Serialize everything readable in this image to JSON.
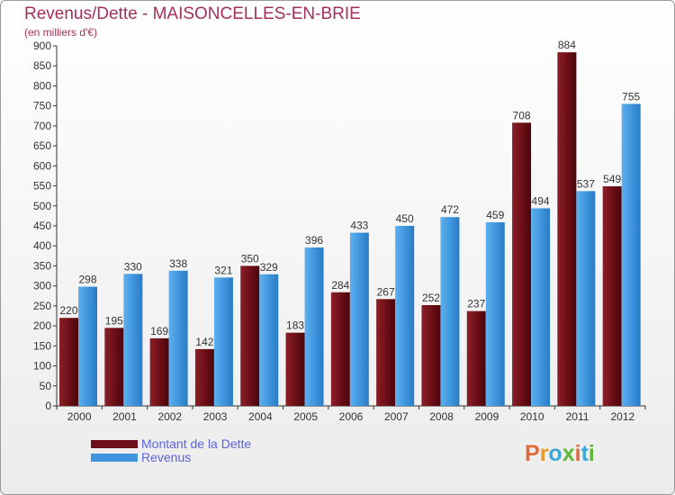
{
  "title": "Revenus/Dette - MAISONCELLES-EN-BRIE",
  "subtitle": "(en milliers d'€)",
  "chart_data": {
    "type": "bar",
    "title": "Revenus/Dette - MAISONCELLES-EN-BRIE",
    "subtitle": "(en milliers d'€)",
    "xlabel": "",
    "ylabel": "",
    "ylim": [
      0,
      900
    ],
    "yticks": [
      0,
      50,
      100,
      150,
      200,
      250,
      300,
      350,
      400,
      450,
      500,
      550,
      600,
      650,
      700,
      750,
      800,
      850,
      900
    ],
    "grid": false,
    "legend_position": "bottom-left",
    "categories": [
      "2000",
      "2001",
      "2002",
      "2003",
      "2004",
      "2005",
      "2006",
      "2007",
      "2008",
      "2009",
      "2010",
      "2011",
      "2012"
    ],
    "series": [
      {
        "name": "Montant de la Dette",
        "color": "#6b0e16",
        "values": [
          220,
          195,
          169,
          142,
          350,
          183,
          284,
          267,
          252,
          237,
          708,
          884,
          549
        ]
      },
      {
        "name": "Revenus",
        "color": "#3d94dc",
        "values": [
          298,
          330,
          338,
          321,
          329,
          396,
          433,
          450,
          472,
          459,
          494,
          537,
          755
        ]
      }
    ]
  },
  "legend": {
    "items": [
      {
        "label": "Montant de la Dette",
        "color": "#6b0e16"
      },
      {
        "label": "Revenus",
        "color": "#3d94dc"
      }
    ]
  },
  "logo": {
    "text": "Proxiti"
  }
}
